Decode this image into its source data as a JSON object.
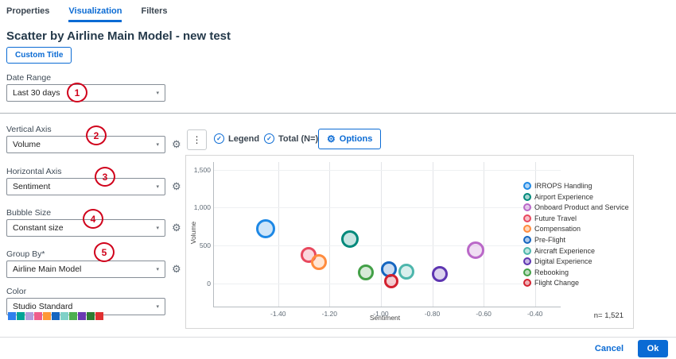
{
  "tabs": [
    {
      "label": "Properties"
    },
    {
      "label": "Visualization"
    },
    {
      "label": "Filters"
    }
  ],
  "header": {
    "title": "Scatter by Airline Main Model - new test",
    "custom_title_button": "Custom Title"
  },
  "form": {
    "date_range": {
      "label": "Date Range",
      "value": "Last 30 days"
    },
    "vertical_axis": {
      "label": "Vertical Axis",
      "value": "Volume"
    },
    "horizontal_axis": {
      "label": "Horizontal Axis",
      "value": "Sentiment"
    },
    "bubble_size": {
      "label": "Bubble Size",
      "value": "Constant size"
    },
    "group_by": {
      "label": "Group By*",
      "value": "Airline Main Model"
    },
    "color": {
      "label": "Color",
      "value": "Studio Standard",
      "swatches": [
        "#2f80ed",
        "#00a396",
        "#b39ddb",
        "#ef5d8c",
        "#ff9838",
        "#1565c0",
        "#7fd1c8",
        "#4caf50",
        "#6a3ab2",
        "#2e7d32",
        "#e03131"
      ]
    }
  },
  "annotations": [
    {
      "label": "1"
    },
    {
      "label": "2"
    },
    {
      "label": "3"
    },
    {
      "label": "4"
    },
    {
      "label": "5"
    }
  ],
  "toolbar": {
    "legend_toggle": "Legend",
    "total_toggle": "Total (N=)",
    "options_button": "Options"
  },
  "icons": {
    "gear": "⚙",
    "kebab": "⋮",
    "check": "✓",
    "caret": "▾"
  },
  "chart_data": {
    "type": "scatter",
    "xlabel": "Sentiment",
    "ylabel": "Volume",
    "xlim": [
      -1.65,
      -0.3
    ],
    "ylim": [
      -300,
      1600
    ],
    "x_ticks": [
      -1.4,
      -1.2,
      -1.0,
      -0.8,
      -0.6,
      -0.4
    ],
    "x_tick_labels": [
      "-1.40",
      "-1.20",
      "-1.00",
      "-0.80",
      "-0.60",
      "-0.40"
    ],
    "y_ticks": [
      0,
      500,
      1000,
      1500
    ],
    "y_tick_labels": [
      "0",
      "500",
      "1,000",
      "1,500"
    ],
    "grid": true,
    "legend_position": "right",
    "n_label": "n= 1,521",
    "series": [
      {
        "name": "IRROPS Handling",
        "x": -1.45,
        "y": 720,
        "r": 12,
        "color": "#1e88e5"
      },
      {
        "name": "Airport Experience",
        "x": -1.12,
        "y": 590,
        "r": 11,
        "color": "#00897b"
      },
      {
        "name": "Onboard Product and Service",
        "x": -0.63,
        "y": 440,
        "r": 11,
        "color": "#ba68c8"
      },
      {
        "name": "Future Travel",
        "x": -1.28,
        "y": 380,
        "r": 10,
        "color": "#e8485e"
      },
      {
        "name": "Compensation",
        "x": -1.24,
        "y": 280,
        "r": 10,
        "color": "#ff8b3d"
      },
      {
        "name": "Pre-Flight",
        "x": -0.97,
        "y": 190,
        "r": 10,
        "color": "#1565c0"
      },
      {
        "name": "Aircraft Experience",
        "x": -0.9,
        "y": 160,
        "r": 10,
        "color": "#4db6ac"
      },
      {
        "name": "Digital Experience",
        "x": -0.77,
        "y": 130,
        "r": 10,
        "color": "#5e35b1"
      },
      {
        "name": "Rebooking",
        "x": -1.06,
        "y": 150,
        "r": 10,
        "color": "#43a047"
      },
      {
        "name": "Flight Change",
        "x": -0.96,
        "y": 30,
        "r": 9,
        "color": "#d3212f"
      }
    ]
  },
  "footer": {
    "cancel": "Cancel",
    "ok": "Ok"
  },
  "colors": {
    "accent": "#0b6bd4",
    "annotation": "#d0021b"
  }
}
